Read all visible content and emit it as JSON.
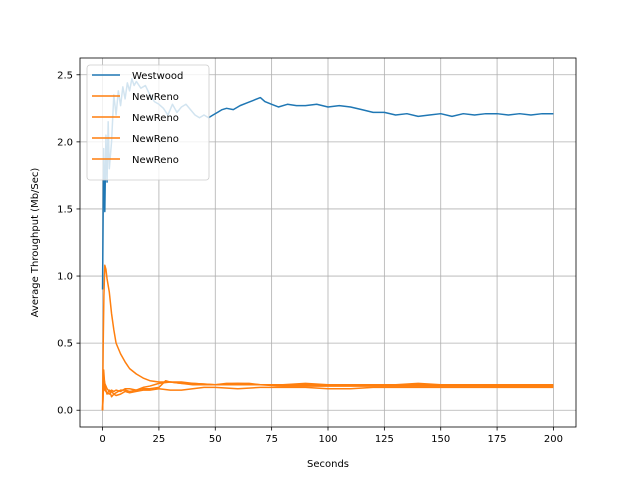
{
  "chart_data": {
    "type": "line",
    "title": "",
    "xlabel": "Seconds",
    "ylabel": "Average Throughput (Mb/Sec)",
    "xlim": [
      -10,
      210
    ],
    "ylim": [
      -0.125,
      2.625
    ],
    "xticks": [
      0,
      25,
      50,
      75,
      100,
      125,
      150,
      175,
      200
    ],
    "yticks": [
      0.0,
      0.5,
      1.0,
      1.5,
      2.0,
      2.5
    ],
    "ytick_labels": [
      "0.0",
      "0.5",
      "1.0",
      "1.5",
      "2.0",
      "2.5"
    ],
    "grid": true,
    "legend_position": "top-left",
    "series": [
      {
        "name": "Westwood",
        "color": "#1f77b4",
        "x": [
          0,
          0.5,
          1,
          1.5,
          2,
          2.5,
          3,
          4,
          5,
          6,
          7,
          8,
          9,
          10,
          11,
          12,
          13,
          14,
          15,
          17,
          19,
          21,
          23,
          25,
          27,
          29,
          31,
          33,
          35,
          37,
          39,
          41,
          43,
          45,
          47,
          49,
          51,
          53,
          55,
          58,
          61,
          64,
          67,
          70,
          72,
          75,
          78,
          82,
          86,
          90,
          95,
          100,
          105,
          110,
          115,
          120,
          125,
          130,
          135,
          140,
          145,
          150,
          155,
          160,
          165,
          170,
          175,
          180,
          185,
          190,
          195,
          200
        ],
        "y": [
          0.9,
          1.95,
          1.48,
          2.05,
          1.7,
          2.15,
          1.8,
          2.0,
          2.35,
          2.2,
          2.38,
          2.27,
          2.41,
          2.32,
          2.44,
          2.38,
          2.47,
          2.42,
          2.45,
          2.4,
          2.42,
          2.35,
          2.3,
          2.28,
          2.25,
          2.2,
          2.28,
          2.22,
          2.26,
          2.28,
          2.24,
          2.2,
          2.18,
          2.2,
          2.18,
          2.2,
          2.22,
          2.24,
          2.25,
          2.24,
          2.27,
          2.29,
          2.31,
          2.33,
          2.3,
          2.28,
          2.26,
          2.28,
          2.27,
          2.27,
          2.28,
          2.26,
          2.27,
          2.26,
          2.24,
          2.22,
          2.22,
          2.2,
          2.21,
          2.19,
          2.2,
          2.21,
          2.19,
          2.21,
          2.2,
          2.21,
          2.21,
          2.2,
          2.21,
          2.2,
          2.21,
          2.21
        ]
      },
      {
        "name": "NewReno",
        "color": "#ff7f0e",
        "x": [
          0,
          0.3,
          0.6,
          1,
          1.5,
          2,
          3,
          4,
          5,
          6,
          8,
          10,
          12,
          15,
          18,
          21,
          25,
          30,
          35,
          40,
          50,
          60,
          70,
          80,
          90,
          100,
          110,
          120,
          130,
          140,
          150,
          160,
          170,
          180,
          190,
          200
        ],
        "y": [
          0.0,
          0.5,
          0.85,
          1.08,
          1.05,
          0.98,
          0.88,
          0.72,
          0.6,
          0.5,
          0.42,
          0.36,
          0.31,
          0.27,
          0.24,
          0.22,
          0.21,
          0.21,
          0.2,
          0.2,
          0.19,
          0.19,
          0.19,
          0.19,
          0.19,
          0.19,
          0.19,
          0.19,
          0.19,
          0.19,
          0.19,
          0.19,
          0.18,
          0.18,
          0.18,
          0.18
        ]
      },
      {
        "name": "NewReno",
        "color": "#ff7f0e",
        "x": [
          0,
          0.5,
          1,
          2,
          3,
          4,
          5,
          6,
          8,
          10,
          12,
          15,
          18,
          21,
          25,
          28,
          30,
          35,
          40,
          50,
          60,
          70,
          80,
          90,
          100,
          110,
          120,
          130,
          140,
          150,
          160,
          170,
          180,
          190,
          200
        ],
        "y": [
          0.0,
          0.3,
          0.18,
          0.12,
          0.15,
          0.1,
          0.12,
          0.13,
          0.15,
          0.15,
          0.14,
          0.15,
          0.16,
          0.16,
          0.17,
          0.22,
          0.21,
          0.2,
          0.19,
          0.19,
          0.2,
          0.19,
          0.19,
          0.2,
          0.19,
          0.19,
          0.19,
          0.19,
          0.2,
          0.19,
          0.19,
          0.19,
          0.19,
          0.19,
          0.19
        ]
      },
      {
        "name": "NewReno",
        "color": "#ff7f0e",
        "x": [
          0,
          0.5,
          1,
          2,
          3,
          4,
          5,
          6,
          8,
          10,
          12,
          15,
          18,
          21,
          25,
          30,
          35,
          40,
          45,
          50,
          60,
          70,
          80,
          90,
          100,
          110,
          120,
          130,
          140,
          150,
          160,
          170,
          180,
          190,
          200
        ],
        "y": [
          0.0,
          0.2,
          0.15,
          0.13,
          0.12,
          0.14,
          0.12,
          0.11,
          0.12,
          0.14,
          0.13,
          0.14,
          0.15,
          0.15,
          0.16,
          0.15,
          0.15,
          0.16,
          0.17,
          0.17,
          0.16,
          0.17,
          0.17,
          0.17,
          0.16,
          0.16,
          0.17,
          0.17,
          0.17,
          0.17,
          0.17,
          0.17,
          0.17,
          0.17,
          0.17
        ]
      },
      {
        "name": "NewReno",
        "color": "#ff7f0e",
        "x": [
          0,
          0.5,
          1,
          2,
          3,
          4,
          5,
          6,
          8,
          10,
          12,
          15,
          18,
          21,
          25,
          30,
          35,
          40,
          50,
          55,
          60,
          65,
          70,
          80,
          90,
          100,
          110,
          120,
          130,
          140,
          150,
          160,
          170,
          180,
          190,
          200
        ],
        "y": [
          0.0,
          0.25,
          0.2,
          0.16,
          0.14,
          0.15,
          0.14,
          0.15,
          0.14,
          0.16,
          0.16,
          0.15,
          0.17,
          0.18,
          0.2,
          0.21,
          0.21,
          0.2,
          0.19,
          0.2,
          0.2,
          0.2,
          0.19,
          0.18,
          0.18,
          0.18,
          0.18,
          0.18,
          0.18,
          0.18,
          0.18,
          0.18,
          0.18,
          0.18,
          0.18,
          0.18
        ]
      }
    ]
  }
}
